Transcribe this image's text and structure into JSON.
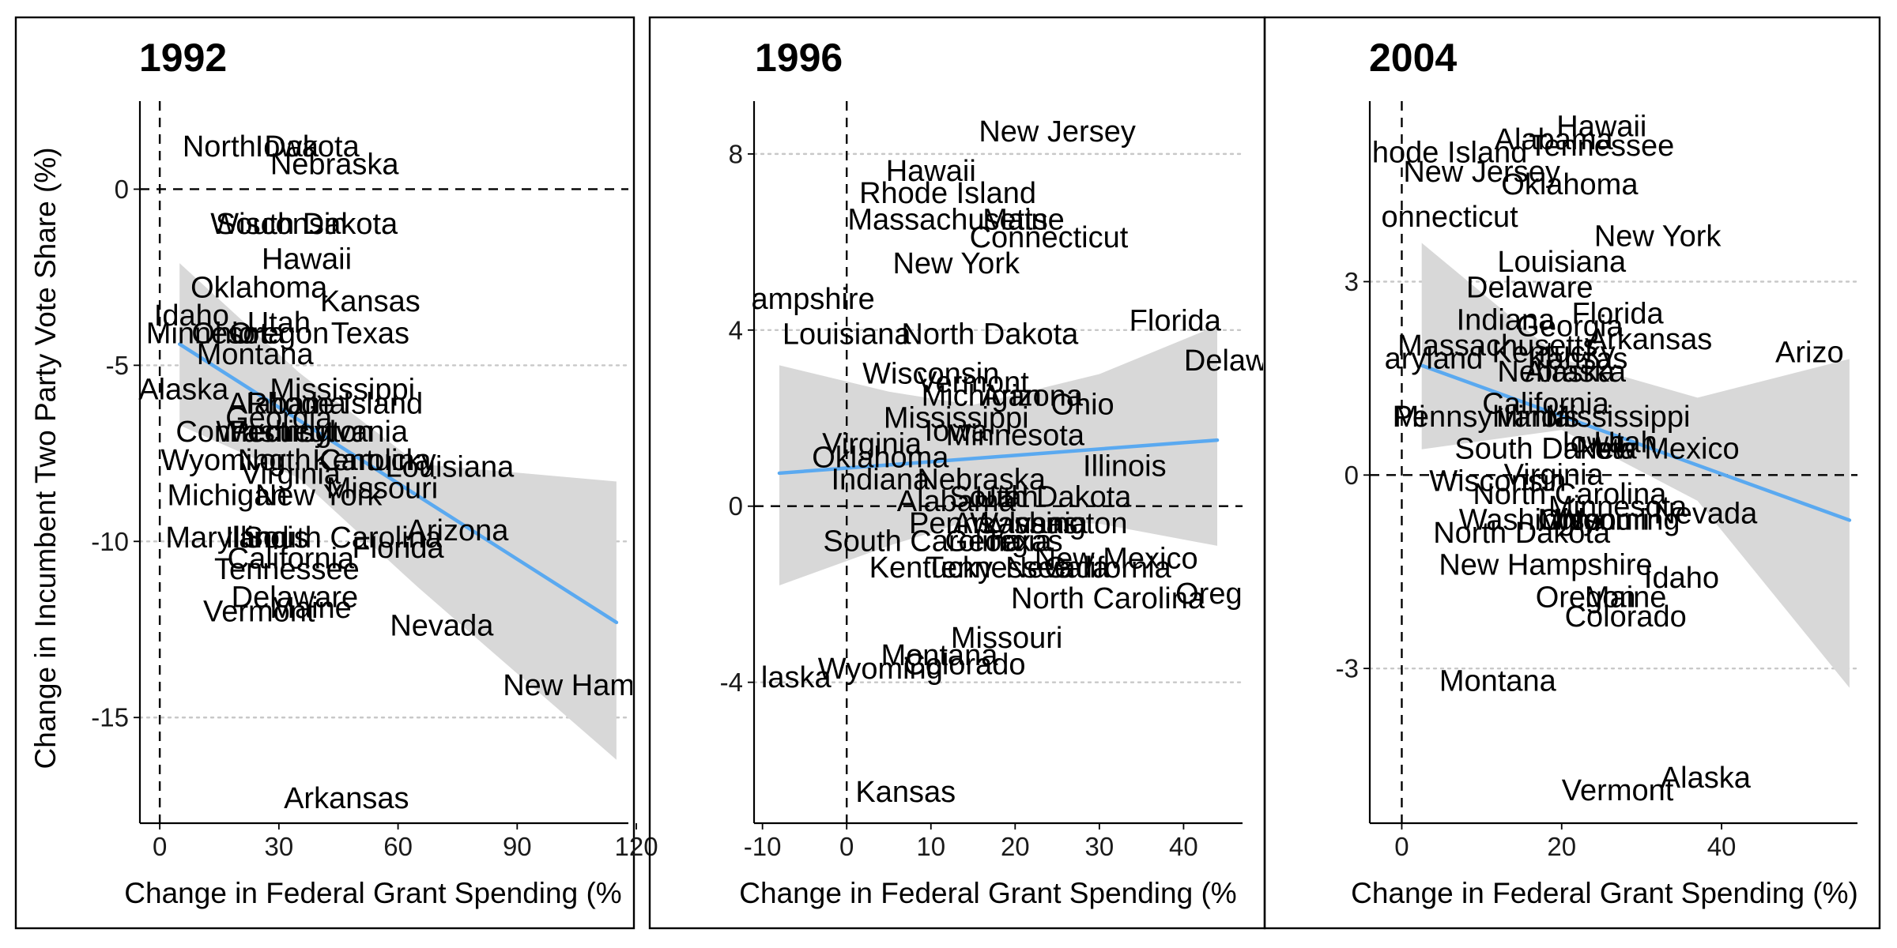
{
  "chart_data": {
    "type": "scatter",
    "ylabel": "Change in Incumbent Two Party Vote Share (%)",
    "panels": [
      {
        "title": "1992",
        "xlabel": "Change in Federal Grant Spending (%",
        "xlim": [
          -5,
          118
        ],
        "ylim": [
          -18,
          2.5
        ],
        "xticks": [
          0,
          30,
          60,
          90,
          120
        ],
        "xtick_labels": [
          "0",
          "30",
          "60",
          "90",
          "120"
        ],
        "yticks": [
          0,
          -5,
          -10,
          -15
        ],
        "ytick_labels": [
          "0",
          "-5",
          "-10",
          "-15"
        ],
        "ytick_labels_visible": true,
        "fit": {
          "x": [
            5,
            115
          ],
          "y": [
            -4.4,
            -12.3
          ]
        },
        "band": {
          "x": [
            5,
            35,
            65,
            115
          ],
          "upper": [
            -2.1,
            -5.2,
            -7.8,
            -8.3
          ],
          "lower": [
            -6.7,
            -8.2,
            -11.3,
            -16.2
          ]
        },
        "points": [
          {
            "label": "Iowa",
            "x": 32,
            "y": 1.2
          },
          {
            "label": "North Dakota",
            "x": 28,
            "y": 1.2
          },
          {
            "label": "Nebraska",
            "x": 44,
            "y": 0.7
          },
          {
            "label": "South Dakota",
            "x": 37,
            "y": -1.0
          },
          {
            "label": "Wisconsin",
            "x": 30,
            "y": -1.0
          },
          {
            "label": "Hawaii",
            "x": 37,
            "y": -2.0
          },
          {
            "label": "Oklahoma",
            "x": 25,
            "y": -2.8
          },
          {
            "label": "Kansas",
            "x": 53,
            "y": -3.2
          },
          {
            "label": "Idaho",
            "x": 8,
            "y": -3.6
          },
          {
            "label": "Utah",
            "x": 30,
            "y": -3.8
          },
          {
            "label": "Minnesota",
            "x": 14,
            "y": -4.1
          },
          {
            "label": "Ohio",
            "x": 16,
            "y": -4.1
          },
          {
            "label": "Oregon",
            "x": 30,
            "y": -4.1
          },
          {
            "label": "Texas",
            "x": 53,
            "y": -4.1
          },
          {
            "label": "Montana",
            "x": 24,
            "y": -4.7
          },
          {
            "label": "Alaska",
            "x": 6,
            "y": -5.7
          },
          {
            "label": "Mississippi",
            "x": 46,
            "y": -5.7
          },
          {
            "label": "Rhode Island",
            "x": 44,
            "y": -6.1
          },
          {
            "label": "Alabama",
            "x": 32,
            "y": -6.1
          },
          {
            "label": "Georgia",
            "x": 30,
            "y": -6.5
          },
          {
            "label": "Connecticut",
            "x": 24,
            "y": -6.9
          },
          {
            "label": "Pennsylvania",
            "x": 40,
            "y": -6.9
          },
          {
            "label": "Washington",
            "x": 34,
            "y": -6.9
          },
          {
            "label": "Wyoming",
            "x": 16,
            "y": -7.7
          },
          {
            "label": "North Carolina",
            "x": 44,
            "y": -7.7
          },
          {
            "label": "Kentucky",
            "x": 54,
            "y": -7.7
          },
          {
            "label": "Louisiana",
            "x": 73,
            "y": -7.9
          },
          {
            "label": "Missouri",
            "x": 56,
            "y": -8.5
          },
          {
            "label": "Virginia",
            "x": 33,
            "y": -8.1
          },
          {
            "label": "Michigan",
            "x": 17,
            "y": -8.7
          },
          {
            "label": "New York",
            "x": 40,
            "y": -8.7
          },
          {
            "label": "Maryland",
            "x": 17,
            "y": -9.9
          },
          {
            "label": "Illinois",
            "x": 27,
            "y": -9.9
          },
          {
            "label": "Arizona",
            "x": 75,
            "y": -9.7
          },
          {
            "label": "South Carolina",
            "x": 46,
            "y": -9.9
          },
          {
            "label": "Florida",
            "x": 60,
            "y": -10.2
          },
          {
            "label": "California",
            "x": 33,
            "y": -10.5
          },
          {
            "label": "Tennessee",
            "x": 32,
            "y": -10.8
          },
          {
            "label": "Delaware",
            "x": 34,
            "y": -11.6
          },
          {
            "label": "Maine",
            "x": 38,
            "y": -11.9
          },
          {
            "label": "Vermont",
            "x": 25,
            "y": -12.0
          },
          {
            "label": "Nevada",
            "x": 71,
            "y": -12.4
          },
          {
            "label": "New Ham",
            "x": 103,
            "y": -14.1
          },
          {
            "label": "Arkansas",
            "x": 47,
            "y": -17.3
          }
        ]
      },
      {
        "title": "1996",
        "xlabel": "Change in Federal Grant Spending (%",
        "xlim": [
          -11,
          47
        ],
        "ylim": [
          -7.2,
          9.2
        ],
        "xticks": [
          -10,
          0,
          10,
          20,
          30,
          40
        ],
        "xtick_labels": [
          "-10",
          "0",
          "10",
          "20",
          "30",
          "40"
        ],
        "yticks": [
          8,
          4,
          0,
          -4
        ],
        "ytick_labels": [
          "8",
          "4",
          "0",
          "-4"
        ],
        "ytick_labels_visible": true,
        "fit": {
          "x": [
            -8,
            44
          ],
          "y": [
            0.75,
            1.5
          ]
        },
        "band": {
          "x": [
            -8,
            5,
            15,
            30,
            44
          ],
          "upper": [
            3.2,
            2.6,
            2.3,
            3.0,
            4.1
          ],
          "lower": [
            -1.8,
            -0.9,
            -0.3,
            -0.4,
            -0.9
          ]
        },
        "points": [
          {
            "label": "New Jersey",
            "x": 25,
            "y": 8.5
          },
          {
            "label": "Hawaii",
            "x": 10,
            "y": 7.6
          },
          {
            "label": "Rhode Island",
            "x": 12,
            "y": 7.1
          },
          {
            "label": "Massachusetts",
            "x": 12,
            "y": 6.5
          },
          {
            "label": "Maine",
            "x": 21,
            "y": 6.5
          },
          {
            "label": "Connecticut",
            "x": 24,
            "y": 6.1
          },
          {
            "label": "New York",
            "x": 13,
            "y": 5.5
          },
          {
            "label": "ampshire",
            "x": -4,
            "y": 4.7
          },
          {
            "label": "Louisiana",
            "x": 0,
            "y": 3.9
          },
          {
            "label": "North Dakota",
            "x": 17,
            "y": 3.9
          },
          {
            "label": "Florida",
            "x": 39,
            "y": 4.2
          },
          {
            "label": "Delaw",
            "x": 45,
            "y": 3.3
          },
          {
            "label": "Wisconsin",
            "x": 10,
            "y": 3.0
          },
          {
            "label": "Vermont",
            "x": 15,
            "y": 2.8
          },
          {
            "label": "Michigan",
            "x": 16,
            "y": 2.5
          },
          {
            "label": "Arizona",
            "x": 22,
            "y": 2.5
          },
          {
            "label": "Ohio",
            "x": 28,
            "y": 2.3
          },
          {
            "label": "Mississippi",
            "x": 13,
            "y": 2.0
          },
          {
            "label": "Iowa",
            "x": 13,
            "y": 1.7
          },
          {
            "label": "Minnesota",
            "x": 20,
            "y": 1.6
          },
          {
            "label": "Virginia",
            "x": 3,
            "y": 1.4
          },
          {
            "label": "Oklahoma",
            "x": 4,
            "y": 1.1
          },
          {
            "label": "Illinois",
            "x": 33,
            "y": 0.9
          },
          {
            "label": "Indiana",
            "x": 4,
            "y": 0.6
          },
          {
            "label": "Nebraska",
            "x": 16,
            "y": 0.6
          },
          {
            "label": "Alabama",
            "x": 13,
            "y": 0.1
          },
          {
            "label": "Utah",
            "x": 19,
            "y": 0.2
          },
          {
            "label": "South Dakota",
            "x": 23,
            "y": 0.2
          },
          {
            "label": "Pennsylvania",
            "x": 18,
            "y": -0.4
          },
          {
            "label": "Arkansas",
            "x": 20,
            "y": -0.4
          },
          {
            "label": "Washington",
            "x": 24,
            "y": -0.4
          },
          {
            "label": "South Carolina",
            "x": 9,
            "y": -0.8
          },
          {
            "label": "Georgia",
            "x": 18,
            "y": -0.8
          },
          {
            "label": "Texas",
            "x": 21,
            "y": -0.8
          },
          {
            "label": "Kentucky",
            "x": 10,
            "y": -1.4
          },
          {
            "label": "Tennessee",
            "x": 18,
            "y": -1.4
          },
          {
            "label": "Nevada",
            "x": 25,
            "y": -1.4
          },
          {
            "label": "New Mexico",
            "x": 32,
            "y": -1.2
          },
          {
            "label": "California",
            "x": 31,
            "y": -1.4
          },
          {
            "label": "North Carolina",
            "x": 31,
            "y": -2.1
          },
          {
            "label": "Oreg",
            "x": 43,
            "y": -2.0
          },
          {
            "label": "Missouri",
            "x": 19,
            "y": -3.0
          },
          {
            "label": "Montana",
            "x": 11,
            "y": -3.4
          },
          {
            "label": "Colorado",
            "x": 14,
            "y": -3.6
          },
          {
            "label": "Wyoming",
            "x": 4,
            "y": -3.7
          },
          {
            "label": "laska",
            "x": -6,
            "y": -3.9
          },
          {
            "label": "Kansas",
            "x": 7,
            "y": -6.5
          }
        ]
      },
      {
        "title": "2004",
        "xlabel": "Change in Federal Grant Spending (%)",
        "xlim": [
          -4,
          57
        ],
        "ylim": [
          -5.4,
          5.8
        ],
        "xticks": [
          0,
          20,
          40
        ],
        "xtick_labels": [
          "0",
          "20",
          "40"
        ],
        "yticks": [
          3,
          0,
          -3
        ],
        "ytick_labels": [
          "3",
          "0",
          "-3"
        ],
        "ytick_labels_visible": true,
        "fit": {
          "x": [
            2.5,
            56
          ],
          "y": [
            1.7,
            -0.7
          ]
        },
        "band": {
          "x": [
            2.5,
            20,
            37,
            56
          ],
          "upper": [
            3.6,
            1.8,
            1.2,
            1.8
          ],
          "lower": [
            0.4,
            0.7,
            -0.4,
            -3.3
          ]
        },
        "points": [
          {
            "label": "Hawaii",
            "x": 25,
            "y": 5.4
          },
          {
            "label": "Alabama",
            "x": 19,
            "y": 5.2
          },
          {
            "label": "Tennessee",
            "x": 25,
            "y": 5.1
          },
          {
            "label": "hode Island",
            "x": 6,
            "y": 5.0
          },
          {
            "label": "New Jersey",
            "x": 10,
            "y": 4.7
          },
          {
            "label": "Oklahoma",
            "x": 21,
            "y": 4.5
          },
          {
            "label": "onnecticut",
            "x": 6,
            "y": 4.0
          },
          {
            "label": "New York",
            "x": 32,
            "y": 3.7
          },
          {
            "label": "Louisiana",
            "x": 20,
            "y": 3.3
          },
          {
            "label": "Delaware",
            "x": 16,
            "y": 2.9
          },
          {
            "label": "Florida",
            "x": 27,
            "y": 2.5
          },
          {
            "label": "Indiana",
            "x": 13,
            "y": 2.4
          },
          {
            "label": "Georgia",
            "x": 21,
            "y": 2.3
          },
          {
            "label": "Arkansas",
            "x": 31,
            "y": 2.1
          },
          {
            "label": "Arizo",
            "x": 51,
            "y": 1.9
          },
          {
            "label": "Massachusetts",
            "x": 12,
            "y": 2.0
          },
          {
            "label": "Kentucky",
            "x": 19,
            "y": 1.9
          },
          {
            "label": "aryland",
            "x": 4,
            "y": 1.8
          },
          {
            "label": "Kansas",
            "x": 22,
            "y": 1.8
          },
          {
            "label": "Nebraska",
            "x": 20,
            "y": 1.6
          },
          {
            "label": "Alaska",
            "x": 21,
            "y": 1.6
          },
          {
            "label": "California",
            "x": 18,
            "y": 1.1
          },
          {
            "label": "Mi",
            "x": 1,
            "y": 0.9
          },
          {
            "label": "Pennsylvania",
            "x": 10,
            "y": 0.9
          },
          {
            "label": "Illinois",
            "x": 17,
            "y": 0.9
          },
          {
            "label": "Mississippi",
            "x": 27,
            "y": 0.9
          },
          {
            "label": "South Dakota",
            "x": 18,
            "y": 0.4
          },
          {
            "label": "Iowa",
            "x": 24,
            "y": 0.5
          },
          {
            "label": "Utah",
            "x": 28,
            "y": 0.5
          },
          {
            "label": "New Mexico",
            "x": 32,
            "y": 0.4
          },
          {
            "label": "Wisconsin",
            "x": 12,
            "y": -0.1
          },
          {
            "label": "Virginia",
            "x": 19,
            "y": 0.0
          },
          {
            "label": "North Carolina",
            "x": 21,
            "y": -0.3
          },
          {
            "label": "Minnesota",
            "x": 27,
            "y": -0.5
          },
          {
            "label": "Nevada",
            "x": 38,
            "y": -0.6
          },
          {
            "label": "Washington",
            "x": 17,
            "y": -0.7
          },
          {
            "label": "Ohio",
            "x": 21,
            "y": -0.7
          },
          {
            "label": "Missouri",
            "x": 24,
            "y": -0.7
          },
          {
            "label": "Wyoming",
            "x": 27,
            "y": -0.7
          },
          {
            "label": "North Dakota",
            "x": 15,
            "y": -0.9
          },
          {
            "label": "New Hampshire",
            "x": 18,
            "y": -1.4
          },
          {
            "label": "Idaho",
            "x": 35,
            "y": -1.6
          },
          {
            "label": "Oregon",
            "x": 23,
            "y": -1.9
          },
          {
            "label": "Maine",
            "x": 28,
            "y": -1.9
          },
          {
            "label": "Colorado",
            "x": 28,
            "y": -2.2
          },
          {
            "label": "Montana",
            "x": 12,
            "y": -3.2
          },
          {
            "label": "Alaska",
            "x": 38,
            "y": -4.7
          },
          {
            "label": "Vermont",
            "x": 27,
            "y": -4.9
          }
        ]
      }
    ]
  }
}
